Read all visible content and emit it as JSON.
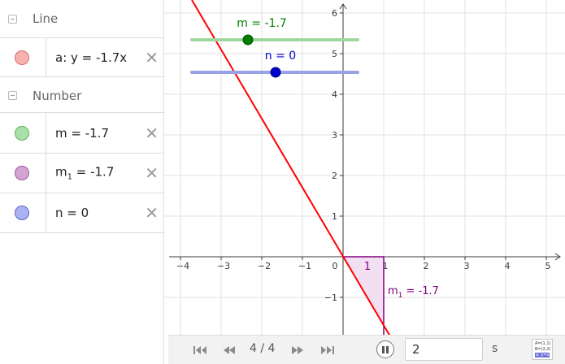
{
  "algebra": {
    "categories": [
      {
        "label": "Line"
      },
      {
        "label": "Number"
      }
    ],
    "objects": [
      {
        "expr": "a: y = -1.7x",
        "color": "#f7b1b1",
        "border": "#d96a6a"
      },
      {
        "expr": "m = -1.7",
        "color": "#a9e0a9",
        "border": "#5fb35f"
      },
      {
        "expr_main": "m",
        "expr_sub": "1",
        "expr_rest": " = -1.7",
        "color": "#d4a4d4",
        "border": "#9c5c9c"
      },
      {
        "expr": "n = 0",
        "color": "#aab2f3",
        "border": "#5d67c5"
      }
    ],
    "delete_glyph": "✕"
  },
  "graph": {
    "x_ticks": [
      "−4",
      "−3",
      "−2",
      "−1",
      "0",
      "1",
      "2",
      "3",
      "4",
      "5"
    ],
    "y_ticks": [
      "6",
      "5",
      "4",
      "3",
      "2",
      "1",
      "−1"
    ],
    "slider_m": {
      "label": "m = -1.7",
      "value": -1.7,
      "min": -5,
      "max": 5,
      "color": "#007f00",
      "track": "#9fd89f"
    },
    "slider_n": {
      "label": "n = 0",
      "value": 0,
      "min": -5,
      "max": 5,
      "color": "#0000cc",
      "track": "#99a2e6"
    },
    "line_color": "#ff0000",
    "slope_label_main": "m",
    "slope_label_sub": "1",
    "slope_label_rest": " = -1.7",
    "slope_run_label": "1",
    "slope_color": "#800080",
    "slope_fill": "#f2dff2"
  },
  "toolbar": {
    "first_icon": "skip-first-icon",
    "prev_icon": "step-back-icon",
    "counter": "4 / 4",
    "next_icon": "step-forward-icon",
    "last_icon": "skip-last-icon",
    "speed_value": "2",
    "speed_unit": "s",
    "input_bar_icon": [
      "A=(1,1)",
      "B=(2,2)",
      "a: y=x"
    ]
  }
}
